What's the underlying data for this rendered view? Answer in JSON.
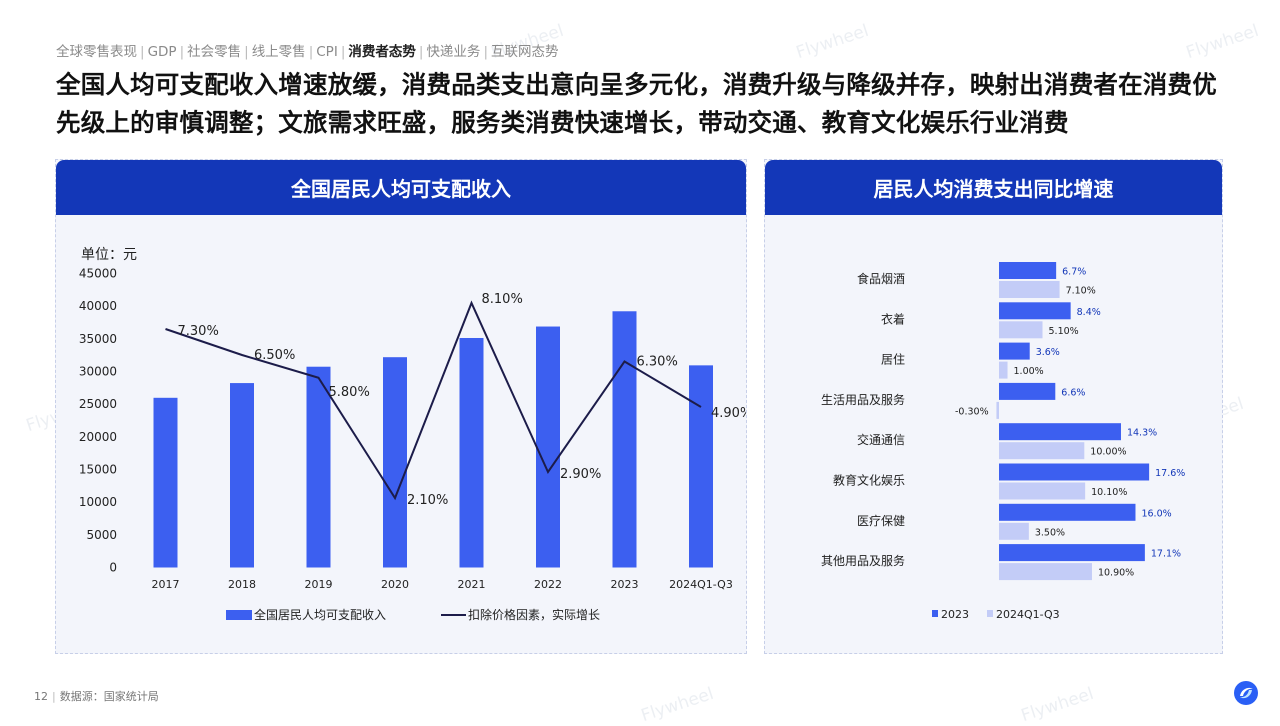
{
  "nav": {
    "items": [
      {
        "label": "全球零售表现",
        "active": false
      },
      {
        "label": "GDP",
        "active": false
      },
      {
        "label": "社会零售",
        "active": false
      },
      {
        "label": "线上零售",
        "active": false
      },
      {
        "label": "CPI",
        "active": false
      },
      {
        "label": "消费者态势",
        "active": true
      },
      {
        "label": "快递业务",
        "active": false
      },
      {
        "label": "互联网态势",
        "active": false
      }
    ]
  },
  "headline": "全国人均可支配收入增速放缓，消费品类支出意向呈多元化，消费升级与降级并存，映射出消费者在消费优先级上的审慎调整；文旅需求旺盛，服务类消费快速增长，带动交通、教育文化娱乐行业消费",
  "panel_left": {
    "title": "全国居民人均可支配收入"
  },
  "panel_right": {
    "title": "居民人均消费支出同比增速"
  },
  "watermark": "Flywheel",
  "footer": {
    "page": "12",
    "source": "数据源：国家统计局"
  },
  "colors": {
    "accent": "#1337b8",
    "bar": "#3c5ff0",
    "bar_light": "#c3ccf7",
    "line": "#1c1c4a"
  },
  "chart_data": [
    {
      "type": "bar",
      "unit_label": "单位：元",
      "categories": [
        "2017",
        "2018",
        "2019",
        "2020",
        "2021",
        "2022",
        "2023",
        "2024Q1-Q3"
      ],
      "ylim": [
        0,
        45000
      ],
      "yticks": [
        0,
        5000,
        10000,
        15000,
        20000,
        25000,
        30000,
        35000,
        40000,
        45000
      ],
      "series": [
        {
          "name": "全国居民人均可支配收入",
          "type": "bar",
          "values": [
            25974,
            28228,
            30733,
            32189,
            35128,
            36883,
            39218,
            30941
          ]
        },
        {
          "name": "扣除价格因素，实际增长",
          "type": "line",
          "values": [
            7.3,
            6.5,
            5.8,
            2.1,
            8.1,
            2.9,
            6.3,
            4.9
          ],
          "labels": [
            "7.30%",
            "6.50%",
            "5.80%",
            "2.10%",
            "8.10%",
            "2.90%",
            "6.30%",
            "4.90%"
          ]
        }
      ],
      "legend": "bottom"
    },
    {
      "type": "bar",
      "orientation": "horizontal",
      "categories": [
        "食品烟酒",
        "衣着",
        "居住",
        "生活用品及服务",
        "交通通信",
        "教育文化娱乐",
        "医疗保健",
        "其他用品及服务"
      ],
      "series": [
        {
          "name": "2023",
          "values": [
            6.7,
            8.4,
            3.6,
            6.6,
            14.3,
            17.6,
            16.0,
            17.1
          ],
          "labels": [
            "6.7%",
            "8.4%",
            "3.6%",
            "6.6%",
            "14.3%",
            "17.6%",
            "16.0%",
            "17.1%"
          ]
        },
        {
          "name": "2024Q1-Q3",
          "values": [
            7.1,
            5.1,
            1.0,
            -0.3,
            10.0,
            10.1,
            3.5,
            10.9
          ],
          "labels": [
            "7.10%",
            "5.10%",
            "1.00%",
            "-0.30%",
            "10.00%",
            "10.10%",
            "3.50%",
            "10.90%"
          ]
        }
      ],
      "legend": "bottom"
    }
  ]
}
